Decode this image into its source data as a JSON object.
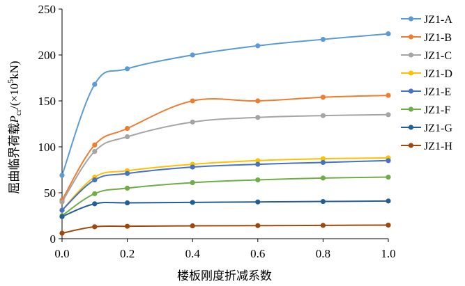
{
  "chart_data": {
    "type": "line",
    "xlabel": "楼板刚度折减系数",
    "ylabel": {
      "main": "屈曲临界荷载",
      "symbol": "P",
      "subscript": "cr",
      "unit_prefix": "/(×10",
      "unit_power": "5",
      "unit_suffix": "kN)"
    },
    "xlim": [
      0.0,
      1.0
    ],
    "ylim": [
      0,
      250
    ],
    "x_ticks": [
      "0.0",
      "0.2",
      "0.4",
      "0.6",
      "0.8",
      "1.0"
    ],
    "y_ticks": [
      "0",
      "50",
      "100",
      "150",
      "200",
      "250"
    ],
    "x": [
      0.0,
      0.1,
      0.2,
      0.4,
      0.6,
      0.8,
      1.0
    ],
    "grid": false,
    "legend_position": "right",
    "series": [
      {
        "name": "JZ1-A",
        "color": "#5B9BD5",
        "values": [
          69,
          168,
          185,
          200,
          210,
          217,
          223
        ]
      },
      {
        "name": "JZ1-B",
        "color": "#ED7D31",
        "values": [
          42,
          102,
          120,
          150,
          150,
          154,
          156
        ]
      },
      {
        "name": "JZ1-C",
        "color": "#A5A5A5",
        "values": [
          40,
          95,
          111,
          127,
          132,
          134,
          135
        ]
      },
      {
        "name": "JZ1-D",
        "color": "#FFC000",
        "values": [
          31,
          67,
          74,
          81,
          85,
          87,
          88
        ]
      },
      {
        "name": "JZ1-E",
        "color": "#4472C4",
        "values": [
          31,
          64,
          71,
          78,
          81,
          83,
          85
        ]
      },
      {
        "name": "JZ1-F",
        "color": "#70AD47",
        "values": [
          25,
          49,
          55,
          61,
          64,
          66,
          67
        ]
      },
      {
        "name": "JZ1-G",
        "color": "#255E91",
        "values": [
          24,
          38,
          39,
          39.5,
          40,
          40.5,
          41
        ]
      },
      {
        "name": "JZ1-H",
        "color": "#9E480E",
        "values": [
          6,
          13,
          13.5,
          14,
          14.2,
          14.5,
          14.8
        ]
      }
    ]
  }
}
